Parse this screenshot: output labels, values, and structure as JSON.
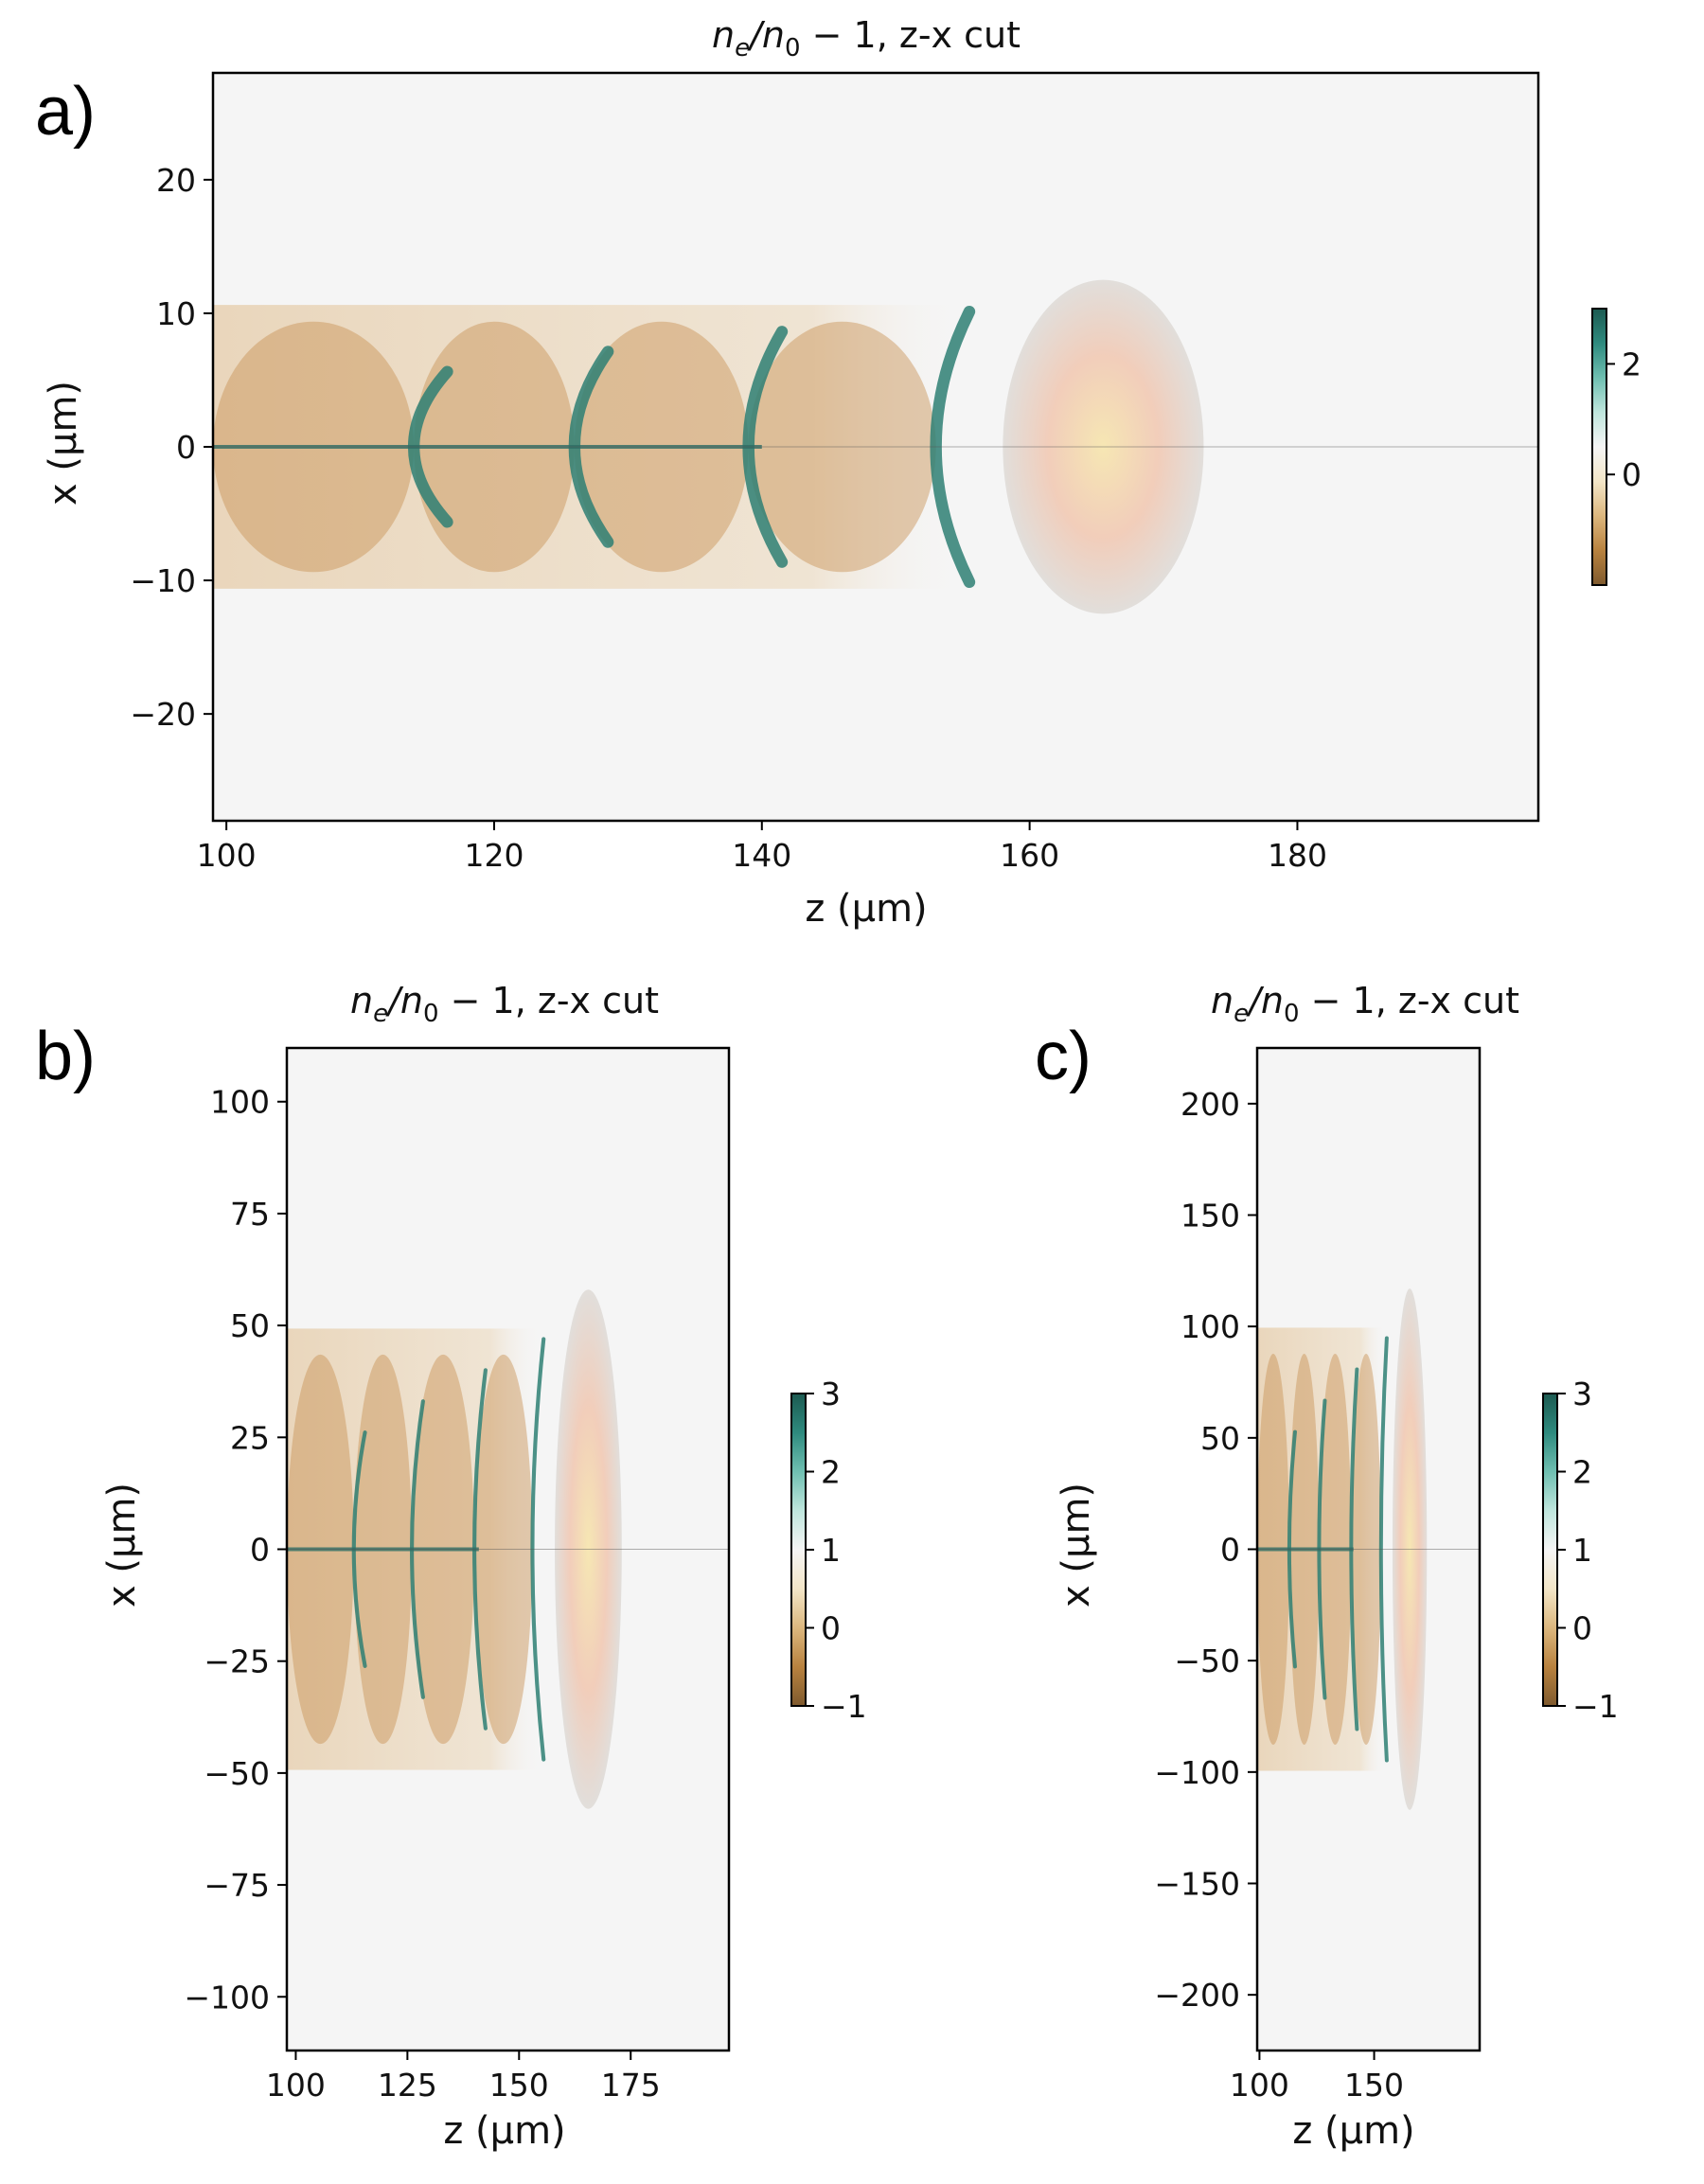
{
  "panel_labels": [
    "a)",
    "b)",
    "c)"
  ],
  "colormap": {
    "name": "BrBG-like",
    "colors": [
      "#7f5a2e",
      "#b8823f",
      "#dcb77e",
      "#f3e6c8",
      "#f5f5f5",
      "#bfe6dd",
      "#6fbfb1",
      "#2e8a7e",
      "#1c5a51"
    ],
    "background": "#f5f5f5",
    "laser_spot": "#f1c9b4"
  },
  "chart_data": [
    {
      "type": "heatmap",
      "panel": "a)",
      "title_main": "n",
      "title_sub1": "e",
      "title_mid": "/n",
      "title_sub2": "0",
      "title_tail": " − 1, z-x cut",
      "xlabel": "z (μm)",
      "ylabel": "x (μm)",
      "xlim": [
        99,
        198
      ],
      "ylim": [
        -28,
        28
      ],
      "xticks": [
        100,
        120,
        140,
        160,
        180
      ],
      "xtick_labels": [
        "100",
        "120",
        "140",
        "160",
        "180"
      ],
      "yticks": [
        20,
        10,
        0,
        -10,
        -20
      ],
      "ytick_labels": [
        "20",
        "10",
        "0",
        "−10",
        "−20"
      ],
      "colorbar": {
        "vmin": -2,
        "vmax": 3,
        "ticks": [
          2,
          0
        ],
        "tick_labels": [
          "2",
          "0"
        ]
      },
      "wake_fronts_z": [
        114,
        126,
        139,
        153
      ],
      "laser_spot": {
        "z_center": 165.5,
        "x_center": 0,
        "z_halfwidth": 7.5,
        "x_halfwidth": 12.5
      }
    },
    {
      "type": "heatmap",
      "panel": "b)",
      "title_main": "n",
      "title_sub1": "e",
      "title_mid": "/n",
      "title_sub2": "0",
      "title_tail": " − 1, z-x cut",
      "xlabel": "z (μm)",
      "ylabel": "x (μm)",
      "xlim": [
        98,
        197
      ],
      "ylim": [
        -112,
        112
      ],
      "xticks": [
        100,
        125,
        150,
        175
      ],
      "xtick_labels": [
        "100",
        "125",
        "150",
        "175"
      ],
      "yticks": [
        100,
        75,
        50,
        25,
        0,
        -25,
        -50,
        -75,
        -100
      ],
      "ytick_labels": [
        "100",
        "75",
        "50",
        "25",
        "0",
        "−25",
        "−50",
        "−75",
        "−100"
      ],
      "colorbar": {
        "vmin": -1,
        "vmax": 3,
        "ticks": [
          3,
          2,
          1,
          0,
          -1
        ],
        "tick_labels": [
          "3",
          "2",
          "1",
          "0",
          "−1"
        ]
      },
      "wake_fronts_z": [
        113,
        126,
        140,
        153
      ],
      "laser_spot": {
        "z_center": 165.5,
        "x_center": 0,
        "z_halfwidth": 7.5,
        "x_halfwidth": 58
      }
    },
    {
      "type": "heatmap",
      "panel": "c)",
      "title_main": "n",
      "title_sub1": "e",
      "title_mid": "/n",
      "title_sub2": "0",
      "title_tail": " − 1, z-x cut",
      "xlabel": "z (μm)",
      "ylabel": "x (μm)",
      "xlim": [
        99,
        196
      ],
      "ylim": [
        -225,
        225
      ],
      "xticks": [
        100,
        150
      ],
      "xtick_labels": [
        "100",
        "150"
      ],
      "yticks": [
        200,
        150,
        100,
        50,
        0,
        -50,
        -100,
        -150,
        -200
      ],
      "ytick_labels": [
        "200",
        "150",
        "100",
        "50",
        "0",
        "−50",
        "−100",
        "−150",
        "−200"
      ],
      "colorbar": {
        "vmin": -1,
        "vmax": 3,
        "ticks": [
          3,
          2,
          1,
          0,
          -1
        ],
        "tick_labels": [
          "3",
          "2",
          "1",
          "0",
          "−1"
        ]
      },
      "wake_fronts_z": [
        113,
        126,
        140,
        153
      ],
      "laser_spot": {
        "z_center": 165.5,
        "x_center": 0,
        "z_halfwidth": 7.5,
        "x_halfwidth": 117
      }
    }
  ]
}
